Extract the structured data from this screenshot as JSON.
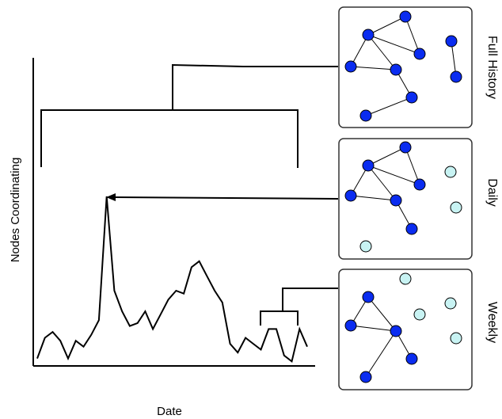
{
  "axes": {
    "x_label": "Date",
    "y_label": "Nodes Coordinating"
  },
  "panels": [
    {
      "id": "full-history",
      "label": "Full History"
    },
    {
      "id": "daily",
      "label": "Daily"
    },
    {
      "id": "weekly",
      "label": "Weekly"
    }
  ],
  "colors": {
    "active_node": "#0a2cf0",
    "inactive_node": "#c8f3f3",
    "line": "#000000",
    "panel_border": "#333333"
  },
  "series": {
    "name": "",
    "values": [
      2,
      9,
      11,
      8,
      2,
      8,
      6,
      10,
      15,
      57,
      25,
      18,
      13,
      14,
      18,
      12,
      17,
      22,
      25,
      24,
      33,
      35,
      30,
      25,
      21,
      7,
      4,
      9,
      7,
      5,
      12,
      12,
      3,
      1,
      12,
      6
    ]
  }
}
